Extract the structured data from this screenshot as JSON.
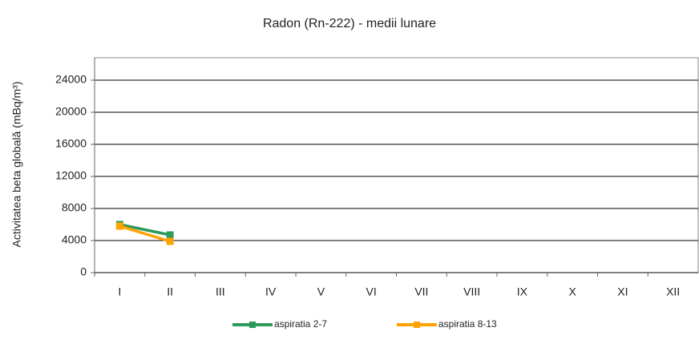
{
  "chart_data": {
    "type": "line",
    "title": "Radon (Rn-222) - medii lunare",
    "y_label": "Activitatea beta globală (mBq/m³)",
    "categories": [
      "I",
      "II",
      "III",
      "IV",
      "V",
      "VI",
      "VII",
      "VIII",
      "IX",
      "X",
      "XI",
      "XII"
    ],
    "series": [
      {
        "name": "aspiratia 2-7",
        "color": "#2e9a5c",
        "values": [
          6000,
          4700,
          null,
          null,
          null,
          null,
          null,
          null,
          null,
          null,
          null,
          null
        ]
      },
      {
        "name": "aspiratia  8-13",
        "color": "#ffa200",
        "values": [
          5800,
          3900,
          null,
          null,
          null,
          null,
          null,
          null,
          null,
          null,
          null,
          null
        ]
      }
    ],
    "ylim": [
      0,
      26800
    ],
    "yticks": [
      0,
      4000,
      8000,
      12000,
      16000,
      20000,
      24000
    ],
    "grid": true
  }
}
